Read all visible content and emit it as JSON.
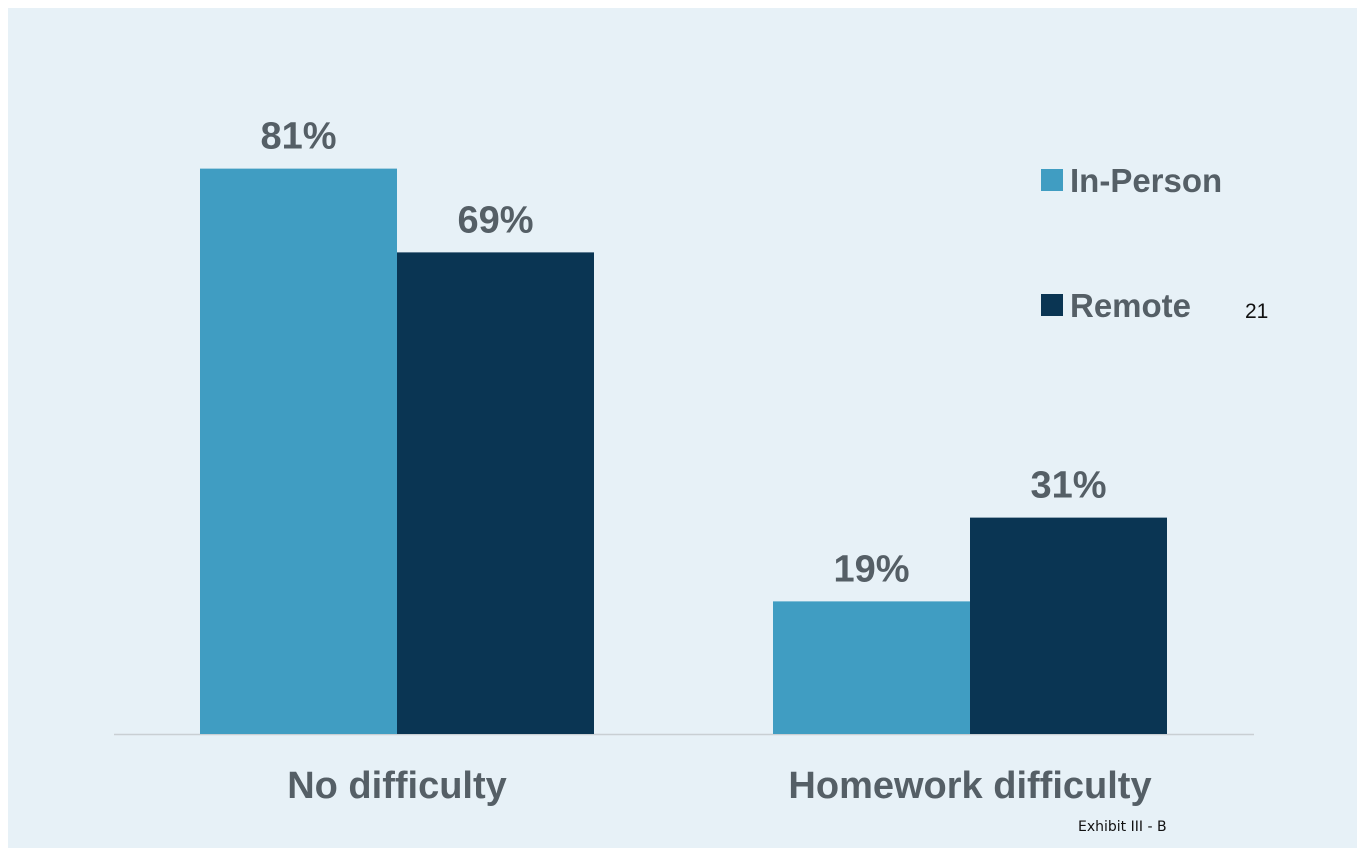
{
  "slide_number": "21",
  "exhibit_label": "Exhibit III - B",
  "chart_data": {
    "type": "bar",
    "categories": [
      "No difficulty",
      "Homework difficulty"
    ],
    "series": [
      {
        "name": "In-Person",
        "values": [
          81,
          19
        ],
        "labels": [
          "81%",
          "19%"
        ],
        "color": "#409dc2"
      },
      {
        "name": "Remote",
        "values": [
          69,
          31
        ],
        "labels": [
          "69%",
          "31%"
        ],
        "color": "#0a3553"
      }
    ],
    "ylim": [
      0,
      100
    ],
    "grid": false,
    "legend_position": "right"
  }
}
